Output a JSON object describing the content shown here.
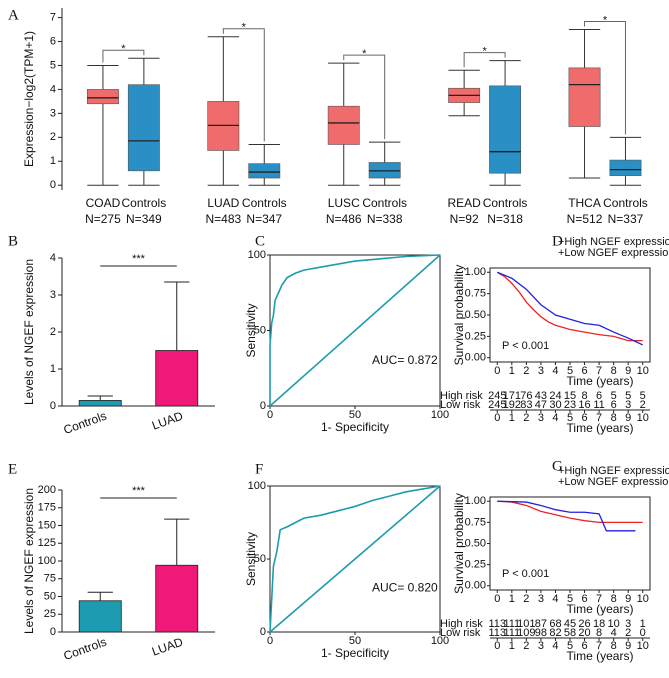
{
  "chart_data": [
    {
      "type": "box",
      "panel": "A",
      "ylabel": "Expression−log2(TPM+1)",
      "ylim": [
        -0.2,
        7.4
      ],
      "yticks": [
        0,
        1,
        2,
        3,
        4,
        5,
        6,
        7
      ],
      "boxes": [
        {
          "label": "COAD",
          "n": "N=275",
          "color": "#f06b6b",
          "min": 0,
          "q1": 3.4,
          "median": 3.65,
          "q3": 4.0,
          "max": 5.0
        },
        {
          "label": "Controls",
          "n": "N=349",
          "color": "#2a8fc4",
          "min": 0,
          "q1": 0.6,
          "median": 1.85,
          "q3": 4.2,
          "max": 5.3
        },
        {
          "label": "LUAD",
          "n": "N=483",
          "color": "#f06b6b",
          "min": 0,
          "q1": 1.45,
          "median": 2.5,
          "q3": 3.5,
          "max": 6.2
        },
        {
          "label": "Controls",
          "n": "N=347",
          "color": "#2a8fc4",
          "min": 0,
          "q1": 0.3,
          "median": 0.55,
          "q3": 0.9,
          "max": 1.7
        },
        {
          "label": "LUSC",
          "n": "N=486",
          "color": "#f06b6b",
          "min": 0,
          "q1": 1.7,
          "median": 2.6,
          "q3": 3.3,
          "max": 5.1
        },
        {
          "label": "Controls",
          "n": "N=338",
          "color": "#2a8fc4",
          "min": 0,
          "q1": 0.3,
          "median": 0.6,
          "q3": 0.95,
          "max": 1.8
        },
        {
          "label": "READ",
          "n": "N=92",
          "color": "#f06b6b",
          "min": 2.9,
          "q1": 3.45,
          "median": 3.75,
          "q3": 4.05,
          "max": 4.8
        },
        {
          "label": "Controls",
          "n": "N=318",
          "color": "#2a8fc4",
          "min": 0,
          "q1": 0.5,
          "median": 1.4,
          "q3": 4.15,
          "max": 5.2
        },
        {
          "label": "THCA",
          "n": "N=512",
          "color": "#f06b6b",
          "min": 0.3,
          "q1": 2.45,
          "median": 4.2,
          "q3": 4.9,
          "max": 6.5
        },
        {
          "label": "Controls",
          "n": "N=337",
          "color": "#2a8fc4",
          "min": 0,
          "q1": 0.4,
          "median": 0.65,
          "q3": 1.05,
          "max": 2.0
        }
      ],
      "significance": [
        "*",
        "*",
        "*",
        "*",
        "*"
      ]
    },
    {
      "type": "bar",
      "panel": "B",
      "ylabel": "Levels of NGEF expression",
      "categories": [
        "Controls",
        "LUAD"
      ],
      "values": [
        0.15,
        1.5
      ],
      "errors": [
        0.12,
        1.85
      ],
      "colors": [
        "#1d9bb0",
        "#f0197a"
      ],
      "ylim": [
        0,
        4
      ],
      "yticks": [
        0,
        1,
        2,
        3,
        4
      ],
      "significance": "***"
    },
    {
      "type": "roc",
      "panel": "C",
      "xlabel": "1- Specificity",
      "ylabel": "Sensitivity",
      "annotation": "AUC= 0.872",
      "color": "#1d9bb0",
      "x": [
        0,
        0,
        1,
        2,
        3,
        5,
        7,
        10,
        15,
        20,
        30,
        40,
        50,
        60,
        80,
        100
      ],
      "y": [
        0,
        40,
        55,
        60,
        70,
        75,
        80,
        85,
        88,
        90,
        92,
        94,
        96,
        97,
        99,
        100
      ],
      "xlim": [
        0,
        100
      ],
      "ylim": [
        0,
        100
      ],
      "xticks": [
        0,
        50,
        100
      ],
      "yticks": [
        0,
        50,
        100
      ]
    },
    {
      "type": "survival",
      "panel": "D",
      "ylabel": "Survival probability",
      "xlabel": "Time (years)",
      "annotation": "P < 0.001",
      "series": [
        {
          "name": "+High NGEF expression",
          "color": "#ee2222",
          "x": [
            0,
            0.5,
            1,
            1.5,
            2,
            2.5,
            3,
            3.5,
            4,
            5,
            6,
            7,
            8,
            9,
            10
          ],
          "values": [
            1,
            0.95,
            0.87,
            0.77,
            0.65,
            0.56,
            0.48,
            0.42,
            0.38,
            0.33,
            0.3,
            0.27,
            0.25,
            0.2,
            0.2
          ]
        },
        {
          "name": "+Low NGEF expression",
          "color": "#2222dd",
          "x": [
            0,
            1,
            2,
            3,
            4,
            5,
            6,
            7,
            8,
            9,
            10
          ],
          "values": [
            1,
            0.93,
            0.8,
            0.62,
            0.5,
            0.45,
            0.4,
            0.38,
            0.3,
            0.23,
            0.15
          ]
        }
      ],
      "xlim": [
        -0.5,
        10.5
      ],
      "xticks": [
        0,
        1,
        2,
        3,
        4,
        5,
        6,
        7,
        8,
        9,
        10
      ],
      "ylim": [
        -0.05,
        1.05
      ],
      "yticks": [
        {
          "value": 0,
          "label": "0.00"
        },
        {
          "value": 0.25,
          "label": "0.25"
        },
        {
          "value": 0.5,
          "label": "0.50"
        },
        {
          "value": 0.75,
          "label": "0.75"
        },
        {
          "value": 1,
          "label": "1.00"
        }
      ],
      "risk_table": [
        {
          "name": "High risk",
          "color": "#ee2222",
          "counts": [
            245,
            171,
            76,
            43,
            24,
            15,
            8,
            6,
            5,
            5,
            5
          ]
        },
        {
          "name": "Low risk",
          "color": "#2222dd",
          "counts": [
            245,
            192,
            83,
            47,
            30,
            23,
            16,
            11,
            6,
            3,
            2
          ]
        }
      ],
      "risk_xlabel": "Time (years)"
    },
    {
      "type": "bar",
      "panel": "E",
      "ylabel": "Levels of NGEF expression",
      "categories": [
        "Controls",
        "LUAD"
      ],
      "values": [
        44,
        94
      ],
      "errors": [
        12,
        65
      ],
      "colors": [
        "#1d9bb0",
        "#f0197a"
      ],
      "ylim": [
        0,
        200
      ],
      "yticks": [
        0,
        25,
        50,
        75,
        100,
        125,
        150,
        175,
        200
      ],
      "significance": "***"
    },
    {
      "type": "roc",
      "panel": "F",
      "xlabel": "1- Specificity",
      "ylabel": "Sensitivity",
      "annotation": "AUC= 0.820",
      "color": "#1d9bb0",
      "x": [
        0,
        2,
        4,
        6,
        10,
        15,
        20,
        30,
        40,
        50,
        60,
        70,
        80,
        90,
        100
      ],
      "y": [
        0,
        45,
        55,
        70,
        72,
        75,
        78,
        80,
        83,
        86,
        90,
        93,
        96,
        98,
        100
      ],
      "xlim": [
        0,
        100
      ],
      "ylim": [
        0,
        100
      ],
      "xticks": [
        0,
        50,
        100
      ],
      "yticks": [
        0,
        50,
        100
      ]
    },
    {
      "type": "survival",
      "panel": "G",
      "ylabel": "Survival probability",
      "xlabel": "Time (years)",
      "annotation": "P < 0.001",
      "series": [
        {
          "name": "+High NGEF expression",
          "color": "#ee2222",
          "x": [
            0,
            1,
            2,
            3,
            4,
            5,
            6,
            7,
            8,
            10
          ],
          "values": [
            1,
            0.99,
            0.95,
            0.88,
            0.84,
            0.8,
            0.77,
            0.75,
            0.75,
            0.75
          ]
        },
        {
          "name": "+Low NGEF expression",
          "color": "#2222dd",
          "x": [
            0,
            2,
            3,
            4,
            5,
            6,
            7,
            7.5,
            9.5
          ],
          "values": [
            1,
            0.99,
            0.95,
            0.9,
            0.87,
            0.87,
            0.85,
            0.65,
            0.65
          ]
        }
      ],
      "xlim": [
        -0.5,
        10.5
      ],
      "xticks": [
        0,
        1,
        2,
        3,
        4,
        5,
        6,
        7,
        8,
        9,
        10
      ],
      "ylim": [
        -0.05,
        1.05
      ],
      "yticks": [
        {
          "value": 0,
          "label": "0.00"
        },
        {
          "value": 0.25,
          "label": "0.25"
        },
        {
          "value": 0.5,
          "label": "0.50"
        },
        {
          "value": 0.75,
          "label": "0.75"
        },
        {
          "value": 1,
          "label": "1.00"
        }
      ],
      "risk_table": [
        {
          "name": "High risk",
          "color": "#ee2222",
          "counts": [
            113,
            111,
            101,
            87,
            68,
            45,
            26,
            18,
            10,
            3,
            1
          ]
        },
        {
          "name": "Low risk",
          "color": "#2222dd",
          "counts": [
            113,
            111,
            109,
            98,
            82,
            58,
            20,
            8,
            4,
            2,
            0
          ]
        }
      ],
      "risk_xlabel": "Time (years)"
    }
  ]
}
